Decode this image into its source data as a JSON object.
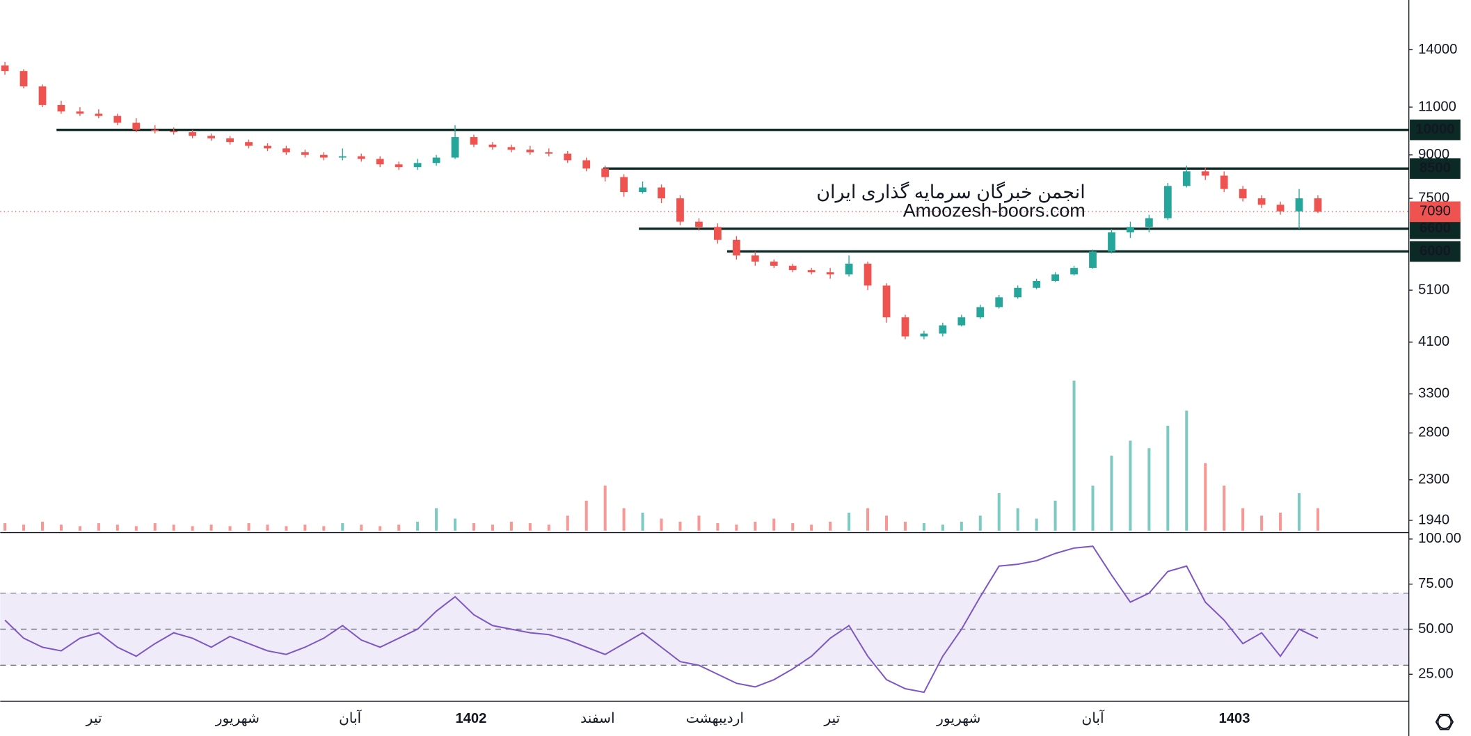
{
  "chart_data": {
    "type": "candlestick",
    "log_scale": true,
    "ylim": [
      1843,
      17250
    ],
    "yticks": [
      14000,
      11000,
      9000,
      7500,
      5100,
      4100,
      3300,
      2800,
      2300,
      1940
    ],
    "up_color": "#26a69a",
    "down_color": "#ef5350",
    "candles": {
      "open": [
        13100,
        12800,
        12000,
        11100,
        10800,
        10700,
        10600,
        10300,
        10000,
        9950,
        9900,
        9750,
        9650,
        9500,
        9350,
        9250,
        9100,
        9000,
        8900,
        8950,
        8850,
        8650,
        8550,
        8700,
        8900,
        9700,
        9400,
        9300,
        9200,
        9100,
        9050,
        8800,
        8500,
        8200,
        7700,
        7850,
        7500,
        6800,
        6650,
        6300,
        5900,
        5750,
        5650,
        5550,
        5500,
        5450,
        5700,
        5200,
        4550,
        4200,
        4250,
        4400,
        4550,
        4750,
        4950,
        5150,
        5300,
        5450,
        5600,
        6000,
        6500,
        6650,
        6900,
        7900,
        8400,
        8250,
        7800,
        7500,
        7300,
        7100,
        7500
      ],
      "high": [
        13300,
        12900,
        12100,
        11300,
        11000,
        10900,
        10700,
        10500,
        10200,
        10100,
        10000,
        9850,
        9750,
        9600,
        9450,
        9350,
        9200,
        9100,
        9250,
        9050,
        8950,
        8750,
        8850,
        9000,
        10200,
        9800,
        9500,
        9400,
        9350,
        9250,
        9150,
        8900,
        8600,
        8300,
        8050,
        7950,
        7600,
        6900,
        6750,
        6400,
        6000,
        5800,
        5700,
        5600,
        5600,
        5900,
        5750,
        5250,
        4600,
        4300,
        4450,
        4600,
        4800,
        5000,
        5200,
        5350,
        5500,
        5650,
        6050,
        6600,
        6800,
        7000,
        8000,
        8600,
        8550,
        8400,
        7900,
        7600,
        7400,
        7800,
        7600
      ],
      "low": [
        12600,
        11900,
        11000,
        10700,
        10600,
        10500,
        10200,
        9900,
        9850,
        9800,
        9650,
        9550,
        9400,
        9250,
        9150,
        9000,
        8900,
        8800,
        8800,
        8750,
        8550,
        8450,
        8450,
        8600,
        8850,
        9300,
        9200,
        9100,
        9000,
        8950,
        8700,
        8400,
        8050,
        7550,
        7650,
        7350,
        6700,
        6550,
        6200,
        5800,
        5650,
        5600,
        5500,
        5450,
        5350,
        5400,
        5100,
        4450,
        4150,
        4150,
        4200,
        4380,
        4520,
        4720,
        4920,
        5120,
        5280,
        5420,
        5580,
        5950,
        6350,
        6500,
        6850,
        7850,
        8100,
        7700,
        7400,
        7200,
        7000,
        6600,
        7050
      ],
      "close": [
        12800,
        12000,
        11100,
        10800,
        10700,
        10600,
        10300,
        10000,
        9950,
        9900,
        9750,
        9650,
        9500,
        9350,
        9250,
        9100,
        9000,
        8900,
        8950,
        8850,
        8650,
        8550,
        8700,
        8900,
        9700,
        9400,
        9300,
        9200,
        9100,
        9050,
        8800,
        8500,
        8200,
        7700,
        7850,
        7500,
        6800,
        6650,
        6300,
        5900,
        5750,
        5650,
        5550,
        5500,
        5450,
        5700,
        5200,
        4550,
        4200,
        4250,
        4400,
        4550,
        4750,
        4950,
        5150,
        5300,
        5450,
        5600,
        6000,
        6500,
        6650,
        6900,
        7900,
        8400,
        8250,
        7800,
        7500,
        7300,
        7100,
        7500,
        7090
      ]
    },
    "volume": {
      "values": [
        5,
        4,
        6,
        4,
        3,
        5,
        4,
        3,
        5,
        4,
        3,
        4,
        3,
        5,
        4,
        3,
        4,
        3,
        5,
        4,
        3,
        4,
        6,
        15,
        8,
        5,
        4,
        6,
        5,
        4,
        10,
        20,
        30,
        15,
        12,
        8,
        6,
        10,
        5,
        4,
        6,
        8,
        5,
        4,
        6,
        12,
        15,
        10,
        6,
        5,
        4,
        6,
        10,
        25,
        15,
        8,
        20,
        100,
        30,
        50,
        60,
        55,
        70,
        80,
        45,
        30,
        15,
        10,
        12,
        25,
        15
      ]
    },
    "levels": [
      10000,
      8500,
      6600,
      6000
    ],
    "level_color": "#0c2a25",
    "watermark": [
      "انجمن خبرگان سرمایه گذاری ایران",
      "Amoozesh-boors.com"
    ],
    "time_labels": [
      "تیر",
      "شهریور",
      "آبان",
      "1402",
      "اسفند",
      "اردیبهشت",
      "تیر",
      "شهریور",
      "آبان",
      "1403"
    ],
    "rsi": {
      "color": "#7e57c2",
      "ylim": [
        10,
        103.6
      ],
      "yticks": [
        {
          "value": 100,
          "label": "100.00"
        },
        {
          "value": 75,
          "label": "75.00"
        },
        {
          "value": 50,
          "label": "50.00"
        },
        {
          "value": 25,
          "label": "25.00"
        }
      ],
      "band": [
        30,
        70
      ],
      "levels": [
        70,
        50,
        30
      ],
      "values": [
        55,
        45,
        40,
        38,
        45,
        48,
        40,
        35,
        42,
        48,
        45,
        40,
        46,
        42,
        38,
        36,
        40,
        45,
        52,
        44,
        40,
        45,
        50,
        60,
        68,
        58,
        52,
        50,
        48,
        47,
        44,
        40,
        36,
        42,
        48,
        40,
        32,
        30,
        25,
        20,
        18,
        22,
        28,
        35,
        45,
        52,
        35,
        22,
        17,
        15,
        35,
        50,
        68,
        85,
        86,
        88,
        92,
        95,
        96,
        80,
        65,
        70,
        82,
        85,
        65,
        55,
        42,
        48,
        35,
        50,
        45
      ]
    }
  }
}
